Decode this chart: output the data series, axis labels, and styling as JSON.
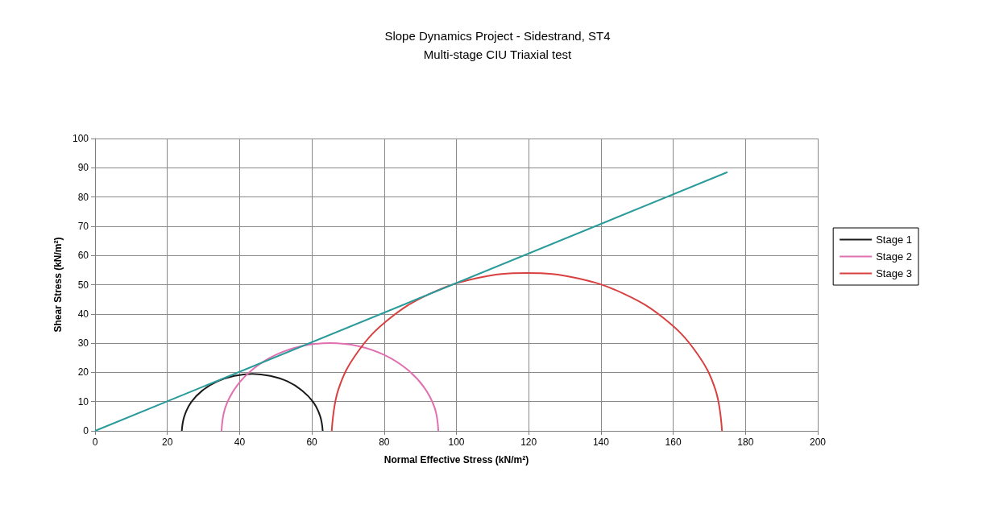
{
  "chart_data": {
    "type": "line",
    "title": "Slope Dynamics Project - Sidestrand, ST4",
    "subtitle": "Multi-stage CIU Triaxial test",
    "xlabel": "Normal Effective Stress (kN/m²)",
    "ylabel": "Shear Stress (kN/m²)",
    "xlim": [
      0,
      200
    ],
    "xticks": [
      0,
      20,
      40,
      60,
      80,
      100,
      120,
      140,
      160,
      180,
      200
    ],
    "ylim": [
      0,
      100
    ],
    "yticks": [
      0,
      10,
      20,
      30,
      40,
      50,
      60,
      70,
      80,
      90,
      100
    ],
    "grid": true,
    "legend": "right",
    "marker": "none",
    "line_style": "solid",
    "series": [
      {
        "name": "Stage 1",
        "color": "#1a1a1a",
        "x": [
          63,
          62.3,
          60.4,
          57.3,
          53.3,
          48.5,
          43.5,
          38.5,
          33.8,
          29.7,
          26.6,
          24.7,
          24
        ],
        "values": [
          0,
          5,
          9.8,
          13.8,
          16.9,
          18.8,
          19.5,
          18.8,
          16.9,
          13.8,
          9.8,
          5,
          0
        ]
      },
      {
        "name": "Stage 2",
        "color": "#e070b0",
        "x": [
          95,
          94,
          91,
          86.2,
          80,
          72.8,
          65,
          57.2,
          50,
          43.8,
          39,
          36,
          35
        ],
        "values": [
          0,
          7.8,
          15,
          21.2,
          26,
          29,
          30,
          29,
          26,
          21.2,
          15,
          7.8,
          0
        ]
      },
      {
        "name": "Stage 3",
        "color": "#d94040",
        "x": [
          173.5,
          171.7,
          166.3,
          157.7,
          146.5,
          133.5,
          119.5,
          105.5,
          92.5,
          81.3,
          72.7,
          67.3,
          65.5
        ],
        "values": [
          0,
          14,
          27,
          38.2,
          46.8,
          52.2,
          54,
          52.2,
          46.8,
          38.2,
          27,
          14,
          0
        ]
      },
      {
        "color": "#2a9a9a",
        "x": [
          0,
          175
        ],
        "values": [
          0,
          88.5
        ]
      }
    ]
  }
}
